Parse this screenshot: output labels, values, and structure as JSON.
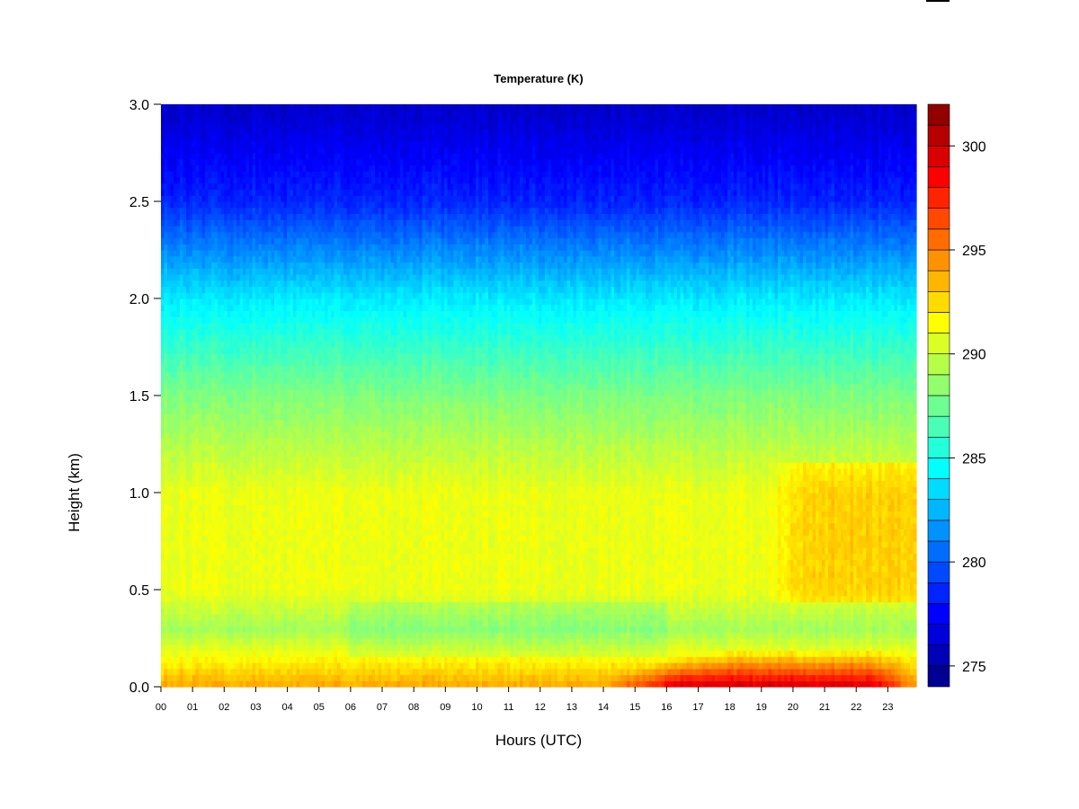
{
  "chart_data": {
    "type": "heatmap",
    "title": "Temperature (K)",
    "xlabel": "Hours (UTC)",
    "ylabel": "Height (km)",
    "x_ticks": [
      "00",
      "01",
      "02",
      "03",
      "04",
      "05",
      "06",
      "07",
      "08",
      "09",
      "10",
      "11",
      "12",
      "13",
      "14",
      "15",
      "16",
      "17",
      "18",
      "19",
      "20",
      "21",
      "22",
      "23"
    ],
    "y_ticks": [
      "0.0",
      "0.5",
      "1.0",
      "1.5",
      "2.0",
      "2.5",
      "3.0"
    ],
    "xlim": [
      0,
      23.9
    ],
    "ylim": [
      0,
      3.0
    ],
    "colorbar": {
      "min": 274,
      "max": 302,
      "levels": 28,
      "ticks": [
        "275",
        "280",
        "285",
        "290",
        "295",
        "300"
      ],
      "colors": [
        "#00008f",
        "#0000bf",
        "#0000ef",
        "#0020ff",
        "#0050ff",
        "#0080ff",
        "#00b0ff",
        "#00dfff",
        "#10ffef",
        "#40ffbf",
        "#70ff8f",
        "#a0ff60",
        "#cfff30",
        "#ffff00",
        "#ffd000",
        "#ffa000",
        "#ff7000",
        "#ff4000",
        "#ff1000",
        "#df0000",
        "#af0000",
        "#800000"
      ]
    },
    "field_summary": [
      {
        "height_km": 3.0,
        "temp_K": 276
      },
      {
        "height_km": 2.5,
        "temp_K": 278.5
      },
      {
        "height_km": 2.0,
        "temp_K": 284
      },
      {
        "height_km": 1.5,
        "temp_K": 288
      },
      {
        "height_km": 1.0,
        "temp_K": 291
      },
      {
        "height_km": 0.5,
        "temp_K": 291
      },
      {
        "height_km": 0.3,
        "temp_K": 289
      },
      {
        "height_km": 0.0,
        "temp_K": 294
      }
    ],
    "surface_daytime_max": {
      "hours": [
        15.5,
        22.5
      ],
      "temp_K": 300
    }
  }
}
